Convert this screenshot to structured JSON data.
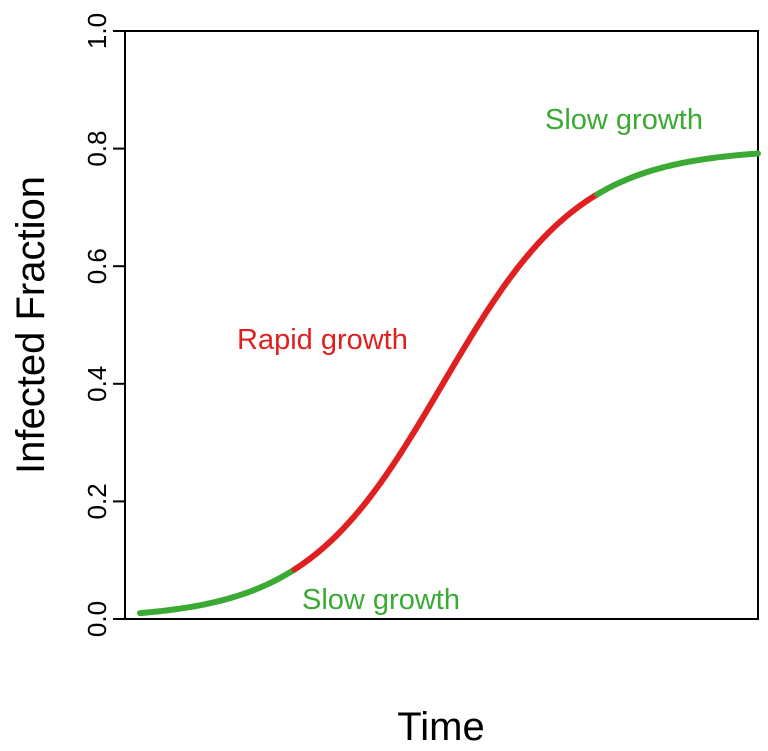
{
  "chart_data": {
    "type": "line",
    "title": "",
    "xlabel": "Time",
    "ylabel": "Infected Fraction",
    "ylim": [
      0,
      1
    ],
    "y_ticks": [
      "0.0",
      "0.2",
      "0.4",
      "0.6",
      "0.8",
      "1.0"
    ],
    "x_ticks_shown": false,
    "grid": false,
    "legend": "none",
    "curve": {
      "form": "logistic",
      "asymptote": 0.8,
      "initial": 0.01
    },
    "segments": [
      {
        "label": "Slow growth",
        "color": "#3aaa35",
        "x_start": 0.0,
        "x_end": 0.25
      },
      {
        "label": "Rapid growth",
        "color": "#e02020",
        "x_start": 0.25,
        "x_end": 0.74
      },
      {
        "label": "Slow growth",
        "color": "#3aaa35",
        "x_start": 0.74,
        "x_end": 1.0
      }
    ],
    "annotations": [
      {
        "text": "Slow growth",
        "color": "#3aaa35",
        "near": "lower-left, at onset of curve"
      },
      {
        "text": "Rapid growth",
        "color": "#e02020",
        "near": "middle, left of steep rise"
      },
      {
        "text": "Slow growth",
        "color": "#3aaa35",
        "near": "upper-right, at plateau"
      }
    ]
  }
}
